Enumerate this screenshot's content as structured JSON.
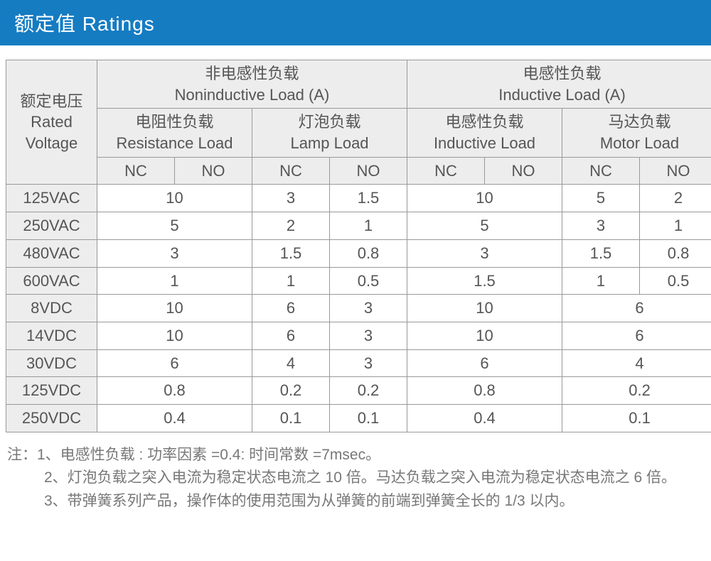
{
  "title": "额定值 Ratings",
  "colHeaders": {
    "voltage_cn": "额定电压",
    "voltage_en1": "Rated",
    "voltage_en2": "Voltage",
    "noninductive_cn": "非电感性负载",
    "noninductive_en": "Noninductive Load (A)",
    "inductive_cn": "电感性负载",
    "inductive_en": "Inductive Load (A)",
    "resistance_cn": "电阻性负载",
    "resistance_en": "Resistance Load",
    "lamp_cn": "灯泡负载",
    "lamp_en": "Lamp Load",
    "inductive2_cn": "电感性负载",
    "inductive2_en": "Inductive Load",
    "motor_cn": "马达负载",
    "motor_en": "Motor Load",
    "nc": "NC",
    "no": "NO"
  },
  "rows": [
    {
      "v": "125VAC",
      "res": "10",
      "lamp_nc": "3",
      "lamp_no": "1.5",
      "ind": "10",
      "mot_nc": "5",
      "mot_no": "2",
      "mot_span": false
    },
    {
      "v": "250VAC",
      "res": "5",
      "lamp_nc": "2",
      "lamp_no": "1",
      "ind": "5",
      "mot_nc": "3",
      "mot_no": "1",
      "mot_span": false
    },
    {
      "v": "480VAC",
      "res": "3",
      "lamp_nc": "1.5",
      "lamp_no": "0.8",
      "ind": "3",
      "mot_nc": "1.5",
      "mot_no": "0.8",
      "mot_span": false
    },
    {
      "v": "600VAC",
      "res": "1",
      "lamp_nc": "1",
      "lamp_no": "0.5",
      "ind": "1.5",
      "mot_nc": "1",
      "mot_no": "0.5",
      "mot_span": false
    },
    {
      "v": "8VDC",
      "res": "10",
      "lamp_nc": "6",
      "lamp_no": "3",
      "ind": "10",
      "mot": "6",
      "mot_span": true
    },
    {
      "v": "14VDC",
      "res": "10",
      "lamp_nc": "6",
      "lamp_no": "3",
      "ind": "10",
      "mot": "6",
      "mot_span": true
    },
    {
      "v": "30VDC",
      "res": "6",
      "lamp_nc": "4",
      "lamp_no": "3",
      "ind": "6",
      "mot": "4",
      "mot_span": true
    },
    {
      "v": "125VDC",
      "res": "0.8",
      "lamp_nc": "0.2",
      "lamp_no": "0.2",
      "ind": "0.8",
      "mot": "0.2",
      "mot_span": true
    },
    {
      "v": "250VDC",
      "res": "0.4",
      "lamp_nc": "0.1",
      "lamp_no": "0.1",
      "ind": "0.4",
      "mot": "0.1",
      "mot_span": true
    }
  ],
  "notes": {
    "l1": "注：1、电感性负载 : 功率因素 =0.4:  时间常数 =7msec。",
    "l2": "2、灯泡负载之突入电流为稳定状态电流之 10 倍。马达负载之突入电流为稳定状态电流之 6 倍。",
    "l3": "3、带弹簧系列产品，操作体的使用范围为从弹簧的前端到弹簧全长的 1/3 以内。"
  },
  "style": {
    "title_bg": "#157cc2",
    "title_color": "#ffffff",
    "header_bg": "#ededed",
    "border_color": "#999999",
    "text_color": "#555555",
    "notes_color": "#777777"
  }
}
